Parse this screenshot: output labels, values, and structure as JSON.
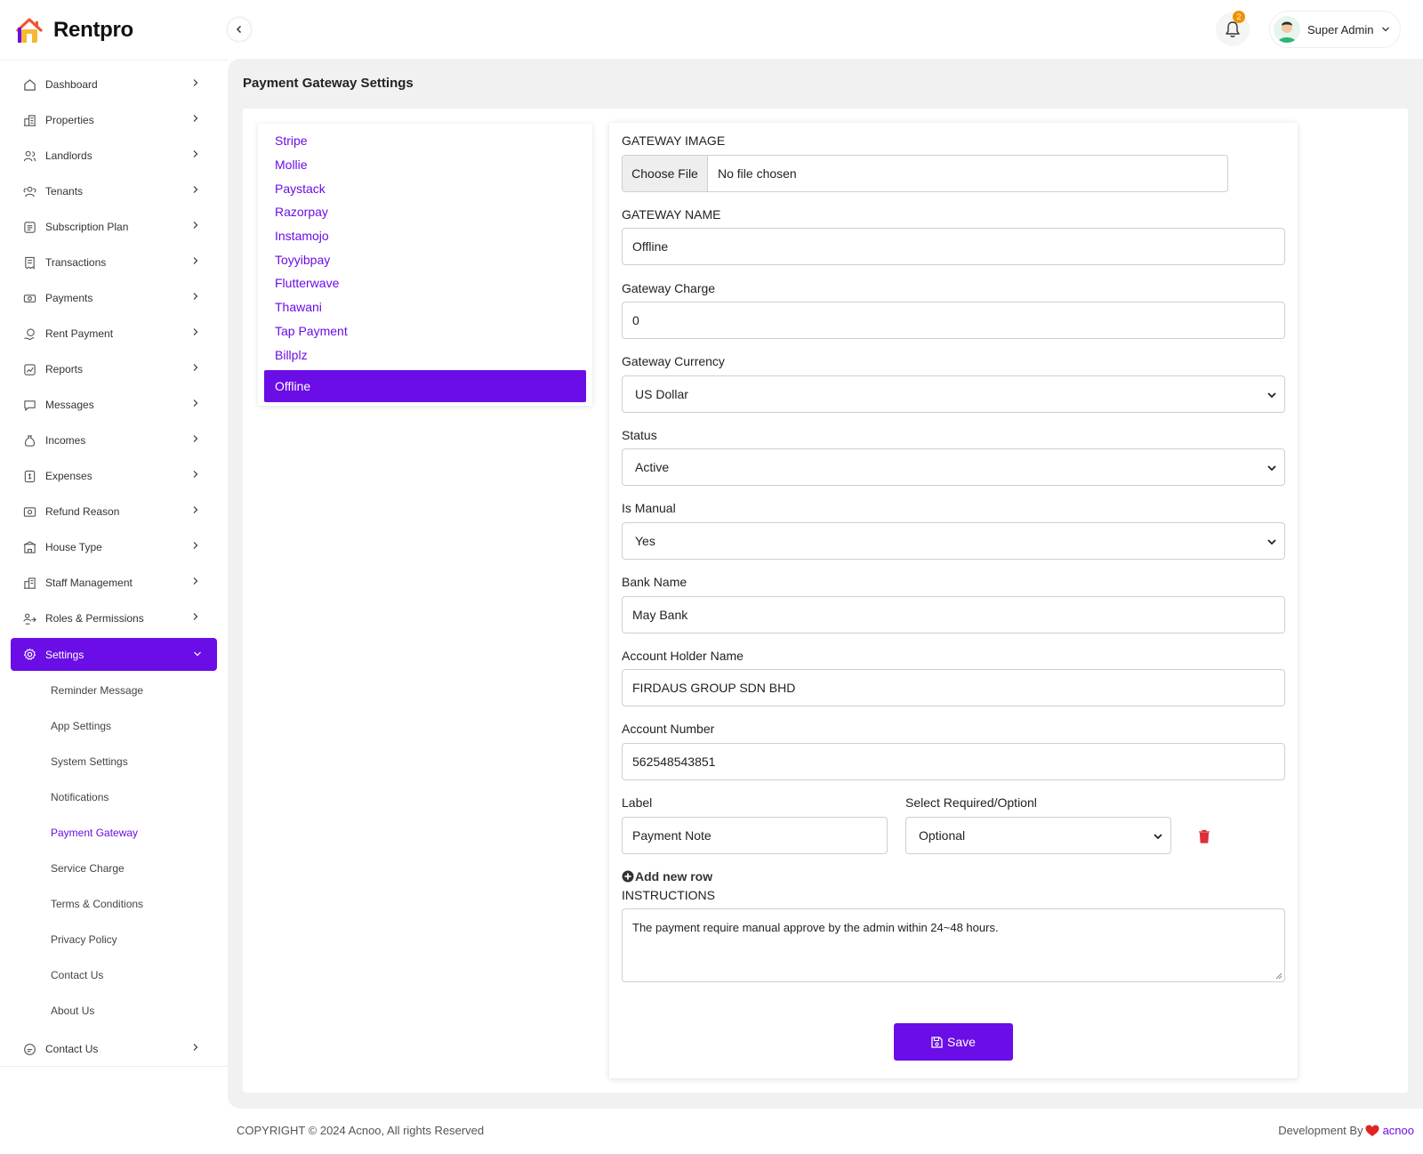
{
  "brand": {
    "name": "Rentpro"
  },
  "colors": {
    "accent": "#6a0de6",
    "badge": "#f29100",
    "danger": "#dc2f3a",
    "heart": "#e02424"
  },
  "sidebar": {
    "items": [
      {
        "label": "Dashboard",
        "icon": "home-icon"
      },
      {
        "label": "Properties",
        "icon": "building-icon"
      },
      {
        "label": "Landlords",
        "icon": "users-icon"
      },
      {
        "label": "Tenants",
        "icon": "users-icon"
      },
      {
        "label": "Subscription Plan",
        "icon": "subscription-icon"
      },
      {
        "label": "Transactions",
        "icon": "receipt-icon"
      },
      {
        "label": "Payments",
        "icon": "cash-icon"
      },
      {
        "label": "Rent Payment",
        "icon": "hand-coin-icon"
      },
      {
        "label": "Reports",
        "icon": "chart-icon"
      },
      {
        "label": "Messages",
        "icon": "chat-icon"
      },
      {
        "label": "Incomes",
        "icon": "money-bag-icon"
      },
      {
        "label": "Expenses",
        "icon": "expense-icon"
      },
      {
        "label": "Refund Reason",
        "icon": "refund-icon"
      },
      {
        "label": "House Type",
        "icon": "house-type-icon"
      },
      {
        "label": "Staff Management",
        "icon": "staff-icon"
      },
      {
        "label": "Roles & Permissions",
        "icon": "roles-icon"
      },
      {
        "label": "Settings",
        "icon": "gear-icon"
      }
    ],
    "settings_sub": [
      "Reminder Message",
      "App Settings",
      "System Settings",
      "Notifications",
      "Payment Gateway",
      "Service Charge",
      "Terms & Conditions",
      "Privacy Policy",
      "Contact Us",
      "About Us"
    ],
    "bottom_item": {
      "label": "Contact Us",
      "icon": "support-icon"
    }
  },
  "header": {
    "notification_count": "2",
    "user_name": "Super Admin"
  },
  "page": {
    "title": "Payment Gateway Settings"
  },
  "gateways": [
    "Stripe",
    "Mollie",
    "Paystack",
    "Razorpay",
    "Instamojo",
    "Toyyibpay",
    "Flutterwave",
    "Thawani",
    "Tap Payment",
    "Billplz",
    "Offline"
  ],
  "form": {
    "gateway_image_label": "GATEWAY IMAGE",
    "choose_file": "Choose File",
    "no_file": "No file chosen",
    "gateway_name_label": "GATEWAY NAME",
    "gateway_name_value": "Offline",
    "charge_label": "Gateway Charge",
    "charge_value": "0",
    "currency_label": "Gateway Currency",
    "currency_value": "US Dollar",
    "status_label": "Status",
    "status_value": "Active",
    "manual_label": "Is Manual",
    "manual_value": "Yes",
    "bank_label": "Bank Name",
    "bank_value": "May Bank",
    "holder_label": "Account Holder Name",
    "holder_value": "FIRDAUS GROUP SDN BHD",
    "account_label": "Account Number",
    "account_value": "562548543851",
    "field_label_label": "Label",
    "field_label_value": "Payment Note",
    "required_label": "Select Required/Optionl",
    "required_value": "Optional",
    "add_row": "Add new row",
    "instructions_label": "INSTRUCTIONS",
    "instructions_value": "The payment require manual approve by the admin within 24~48 hours.",
    "save": "Save"
  },
  "footer": {
    "copyright": "COPYRIGHT © 2024 Acnoo, All rights Reserved",
    "dev_by": "Development By",
    "dev_brand": "acnoo"
  }
}
